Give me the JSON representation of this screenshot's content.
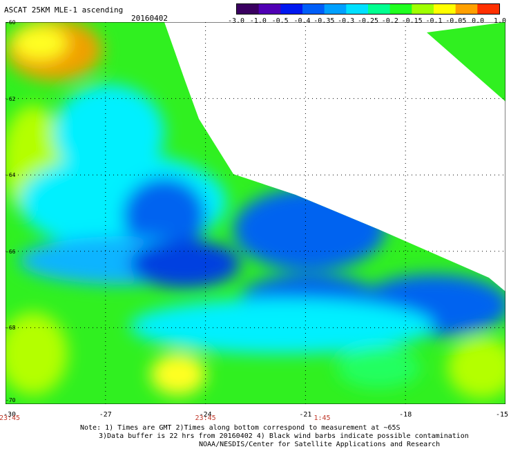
{
  "header": {
    "title": "ASCAT 25KM MLE-1 ascending",
    "date": "20160402"
  },
  "colorbar": {
    "tick_labels": [
      "-3.0",
      "-1.0",
      "-0.5",
      "-0.4",
      "-0.35",
      "-0.3",
      "-0.25",
      "-0.2",
      "-0.15",
      "-0.1",
      "-0.05",
      "0.0",
      "1.0"
    ],
    "colors": [
      "#3a0060",
      "#5000b4",
      "#0018f0",
      "#005ef8",
      "#00a0ff",
      "#00e0ff",
      "#00ff90",
      "#20ff20",
      "#a0ff00",
      "#ffff00",
      "#ffa000",
      "#ff3000"
    ]
  },
  "map": {
    "latitudes": [
      "-60",
      "-62",
      "-64",
      "-66",
      "-68",
      "-70"
    ],
    "longitudes": [
      "-30",
      "-27",
      "-24",
      "-21",
      "-18",
      "-15"
    ],
    "times": [
      {
        "label": "23:45",
        "lon": -30
      },
      {
        "label": "23:45",
        "lon": -24
      },
      {
        "label": "1:45",
        "lon": -20.5
      }
    ],
    "palette": {
      "blue": "#0064f0",
      "deep_blue": "#0040e0",
      "light_blue": "#0ab4ff",
      "cyan": "#00f0ff",
      "green_cyan": "#20ff60",
      "green": "#30f020",
      "yellow_green": "#b4ff00",
      "yellow": "#ffff20",
      "orange": "#f0a000",
      "gridline": "#000000"
    }
  },
  "notes": {
    "line1": "Note: 1) Times are GMT 2)Times along bottom correspond to measurement at ~65S",
    "line2": "3)Data buffer is 22 hrs from 20160402 4) Black wind barbs indicate possible contamination",
    "line3": "NOAA/NESDIS/Center for Satellite Applications and Research"
  }
}
